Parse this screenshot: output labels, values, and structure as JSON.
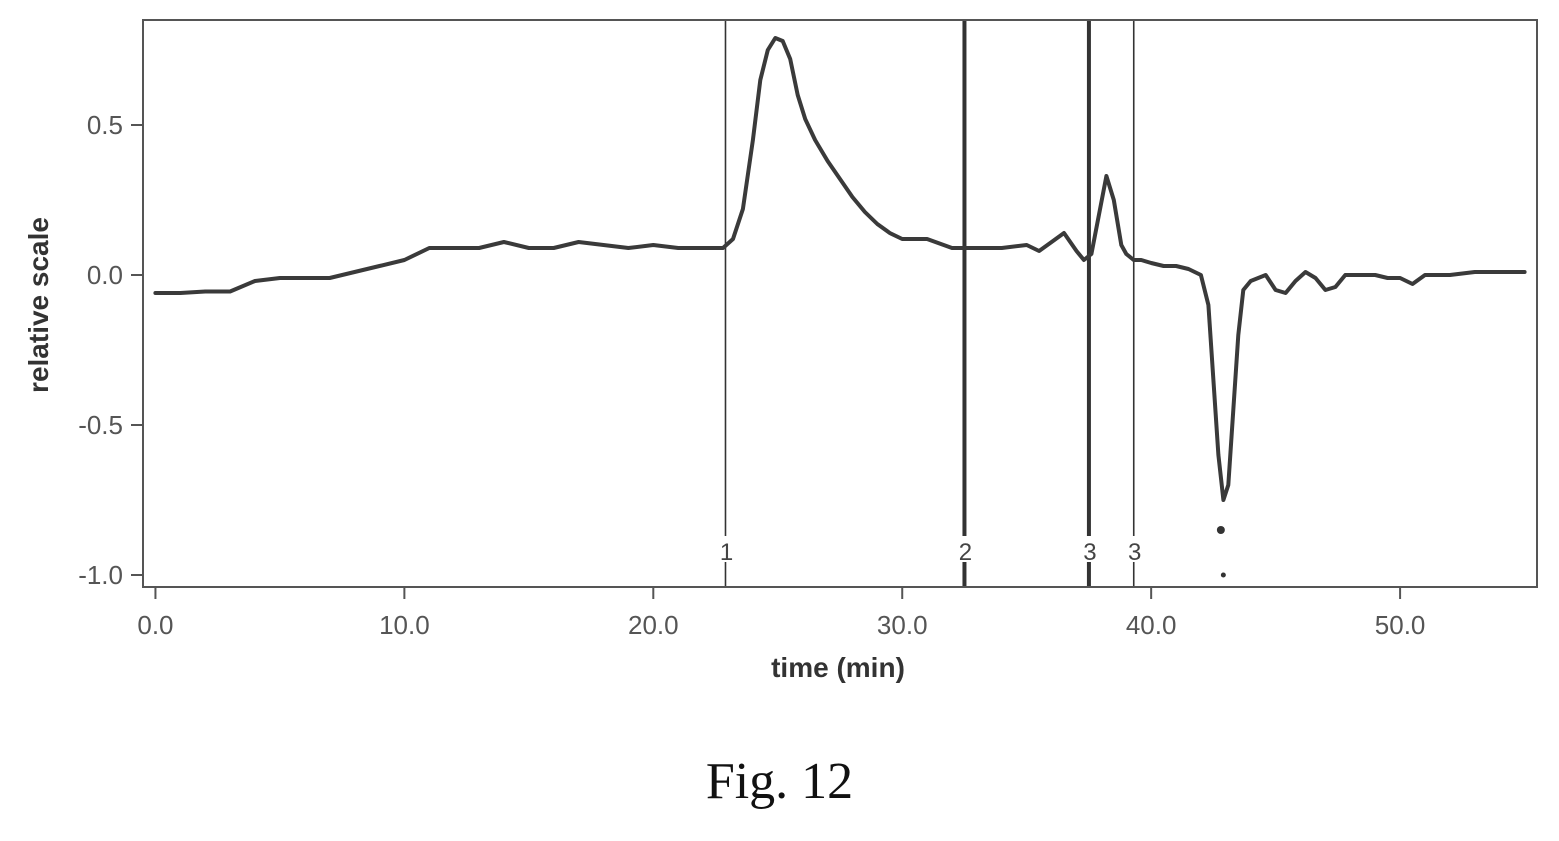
{
  "figure_caption": "Fig. 12",
  "chart_data": {
    "type": "line",
    "title": "",
    "xlabel": "time (min)",
    "ylabel": "relative scale",
    "xlim": [
      -0.5,
      55.5
    ],
    "ylim": [
      -1.04,
      0.85
    ],
    "x_ticks": [
      0,
      10,
      20,
      30,
      40,
      50
    ],
    "x_tick_labels": [
      "0.0",
      "10.0",
      "20.0",
      "30.0",
      "40.0",
      "50.0"
    ],
    "y_ticks": [
      0.5,
      0.0,
      -0.5,
      -1.0
    ],
    "y_tick_labels": [
      "0.5",
      "0.0",
      "-0.5",
      "-1.0"
    ],
    "grid": false,
    "legend": "none",
    "line_color": "#3a3a3a",
    "series": [
      {
        "x": [
          0.0,
          1.0,
          2.0,
          3.0,
          4.0,
          5.0,
          6.0,
          7.0,
          8.0,
          9.0,
          10.0,
          11.0,
          12.0,
          13.0,
          14.0,
          15.0,
          16.0,
          17.0,
          18.0,
          19.0,
          20.0,
          21.0,
          22.0,
          22.8,
          23.2,
          23.6,
          24.0,
          24.3,
          24.6,
          24.9,
          25.2,
          25.5,
          25.8,
          26.1,
          26.5,
          27.0,
          27.5,
          28.0,
          28.5,
          29.0,
          29.5,
          30.0,
          31.0,
          32.0,
          32.5,
          33.0,
          34.0,
          35.0,
          35.5,
          36.0,
          36.5,
          37.0,
          37.3,
          37.6,
          37.9,
          38.2,
          38.5,
          38.8,
          39.0,
          39.3,
          39.6,
          40.0,
          40.5,
          41.0,
          41.5,
          42.0,
          42.3,
          42.5,
          42.7,
          42.9,
          43.1,
          43.3,
          43.5,
          43.7,
          44.0,
          44.3,
          44.6,
          45.0,
          45.4,
          45.8,
          46.2,
          46.6,
          47.0,
          47.4,
          47.8,
          48.2,
          48.6,
          49.0,
          49.5,
          50.0,
          50.5,
          51.0,
          51.5,
          52.0,
          53.0,
          54.0,
          55.0
        ],
        "y": [
          -0.06,
          -0.06,
          -0.055,
          -0.055,
          -0.02,
          -0.01,
          -0.01,
          -0.01,
          0.01,
          0.03,
          0.05,
          0.09,
          0.09,
          0.09,
          0.11,
          0.09,
          0.09,
          0.11,
          0.1,
          0.09,
          0.1,
          0.09,
          0.09,
          0.09,
          0.12,
          0.22,
          0.45,
          0.65,
          0.75,
          0.79,
          0.78,
          0.72,
          0.6,
          0.52,
          0.45,
          0.38,
          0.32,
          0.26,
          0.21,
          0.17,
          0.14,
          0.12,
          0.12,
          0.09,
          0.09,
          0.09,
          0.09,
          0.1,
          0.08,
          0.11,
          0.14,
          0.08,
          0.05,
          0.07,
          0.2,
          0.33,
          0.25,
          0.1,
          0.07,
          0.05,
          0.05,
          0.04,
          0.03,
          0.03,
          0.02,
          0.0,
          -0.1,
          -0.35,
          -0.6,
          -0.75,
          -0.7,
          -0.45,
          -0.2,
          -0.05,
          -0.02,
          -0.01,
          0.0,
          -0.05,
          -0.06,
          -0.02,
          0.01,
          -0.01,
          -0.05,
          -0.04,
          0.0,
          0.0,
          0.0,
          0.0,
          -0.01,
          -0.01,
          -0.03,
          0.0,
          0.0,
          0.0,
          0.01,
          0.01,
          0.01
        ]
      }
    ],
    "markers": [
      {
        "x": 22.9,
        "label": "1",
        "weight": "thin"
      },
      {
        "x": 32.5,
        "label": "2",
        "weight": "bold"
      },
      {
        "x": 37.5,
        "label": "3",
        "weight": "bold"
      },
      {
        "x": 39.3,
        "label": "3",
        "weight": "thin"
      }
    ],
    "outlier_points": [
      {
        "x": 42.8,
        "y": -0.85
      },
      {
        "x": 42.9,
        "y": -1.0
      }
    ]
  }
}
